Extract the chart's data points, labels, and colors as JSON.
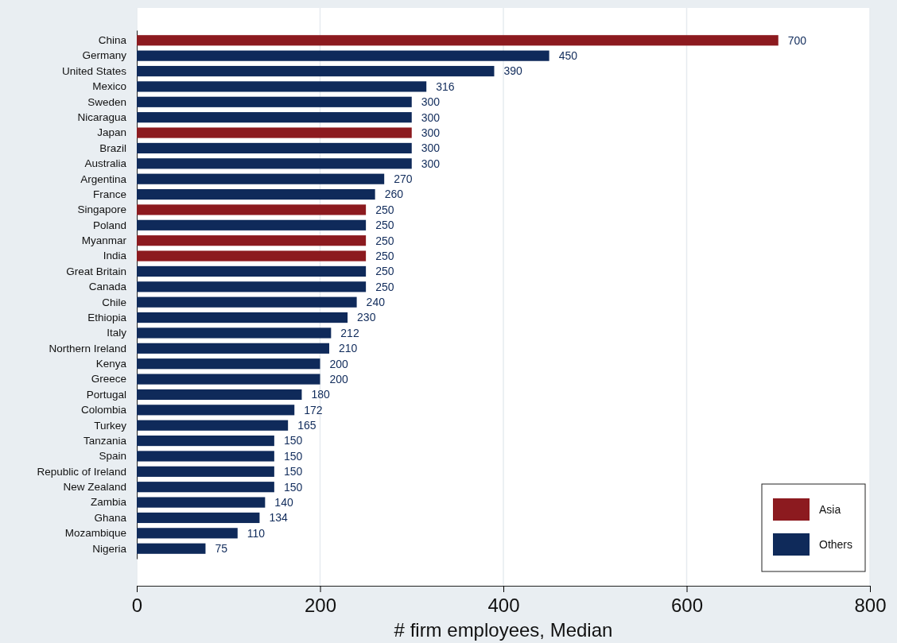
{
  "chart_data": {
    "type": "bar",
    "orientation": "horizontal",
    "xlabel": "# firm employees, Median",
    "categories": [
      "China",
      "Germany",
      "United States",
      "Mexico",
      "Sweden",
      "Nicaragua",
      "Japan",
      "Brazil",
      "Australia",
      "Argentina",
      "France",
      "Singapore",
      "Poland",
      "Myanmar",
      "India",
      "Great Britain",
      "Canada",
      "Chile",
      "Ethiopia",
      "Italy",
      "Northern Ireland",
      "Kenya",
      "Greece",
      "Portugal",
      "Colombia",
      "Turkey",
      "Tanzania",
      "Spain",
      "Republic of Ireland",
      "New Zealand",
      "Zambia",
      "Ghana",
      "Mozambique",
      "Nigeria"
    ],
    "series": [
      {
        "name": "Asia",
        "color": "#8c1a1f",
        "values": [
          700,
          null,
          null,
          null,
          null,
          null,
          300,
          null,
          null,
          null,
          null,
          250,
          null,
          250,
          250,
          null,
          null,
          null,
          null,
          null,
          null,
          null,
          null,
          null,
          null,
          null,
          null,
          null,
          null,
          null,
          null,
          null,
          null,
          null
        ]
      },
      {
        "name": "Others",
        "color": "#0f2a5a",
        "values": [
          null,
          450,
          390,
          316,
          300,
          300,
          null,
          300,
          300,
          270,
          260,
          null,
          250,
          null,
          null,
          250,
          250,
          240,
          230,
          212,
          210,
          200,
          200,
          180,
          172,
          165,
          150,
          150,
          150,
          150,
          140,
          134,
          110,
          75
        ]
      }
    ],
    "xlim": [
      0,
      800
    ],
    "xticks": [
      0,
      200,
      400,
      600,
      800
    ],
    "grid": "x",
    "legend": "bottom right",
    "data_labels": true
  }
}
